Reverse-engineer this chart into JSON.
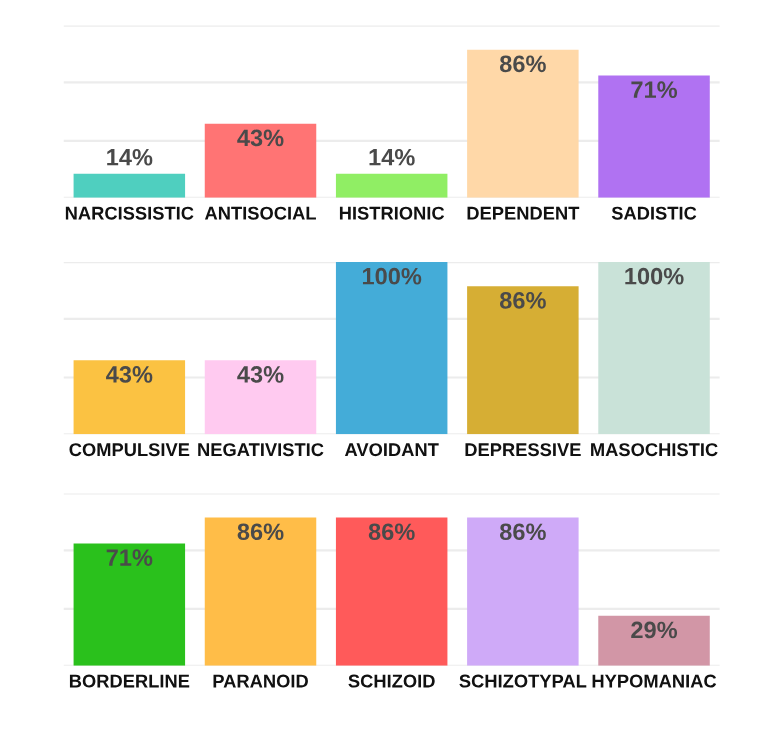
{
  "chart_data": [
    {
      "type": "bar",
      "categories": [
        "NARCISSISTIC",
        "ANTISOCIAL",
        "HISTRIONIC",
        "DEPENDENT",
        "SADISTIC"
      ],
      "values": [
        14,
        43,
        14,
        86,
        71
      ],
      "value_labels": [
        "14%",
        "43%",
        "14%",
        "86%",
        "71%"
      ],
      "colors": [
        "#4fcfbf",
        "#ff7474",
        "#90ee64",
        "#ffd8a8",
        "#b072f2"
      ],
      "ylim": [
        0,
        100
      ],
      "yticks": [
        {
          "value": 0,
          "label": null
        },
        {
          "value": 33,
          "label": null
        },
        {
          "value": 67,
          "label": null
        },
        {
          "value": 100,
          "label": null
        }
      ],
      "grid": "y",
      "tick_labels": "x"
    },
    {
      "type": "bar",
      "categories": [
        "COMPULSIVE",
        "NEGATIVISTIC",
        "AVOIDANT",
        "DEPRESSIVE",
        "MASOCHISTIC"
      ],
      "values": [
        43,
        43,
        100,
        86,
        100
      ],
      "value_labels": [
        "43%",
        "43%",
        "100%",
        "86%",
        "100%"
      ],
      "colors": [
        "#fbc242",
        "#ffcaf0",
        "#44acd8",
        "#d6ae34",
        "#c9e2d8"
      ],
      "ylim": [
        0,
        100
      ],
      "yticks": [
        {
          "value": 0,
          "label": null
        },
        {
          "value": 33,
          "label": null
        },
        {
          "value": 67,
          "label": null
        },
        {
          "value": 100,
          "label": null
        }
      ],
      "grid": "y",
      "tick_labels": "x"
    },
    {
      "type": "bar",
      "categories": [
        "BORDERLINE",
        "PARANOID",
        "SCHIZOID",
        "SCHIZOTYPAL",
        "HYPOMANIAC"
      ],
      "values": [
        71,
        86,
        86,
        86,
        29
      ],
      "value_labels": [
        "71%",
        "86%",
        "86%",
        "86%",
        "29%"
      ],
      "colors": [
        "#2ac11c",
        "#ffbd48",
        "#ff5a5a",
        "#cfaaf8",
        "#d296a6"
      ],
      "ylim": [
        0,
        100
      ],
      "yticks": [
        {
          "value": 0,
          "label": null
        },
        {
          "value": 33,
          "label": null
        },
        {
          "value": 67,
          "label": null
        },
        {
          "value": 100,
          "label": null
        }
      ],
      "grid": "y",
      "tick_labels": "x"
    }
  ]
}
